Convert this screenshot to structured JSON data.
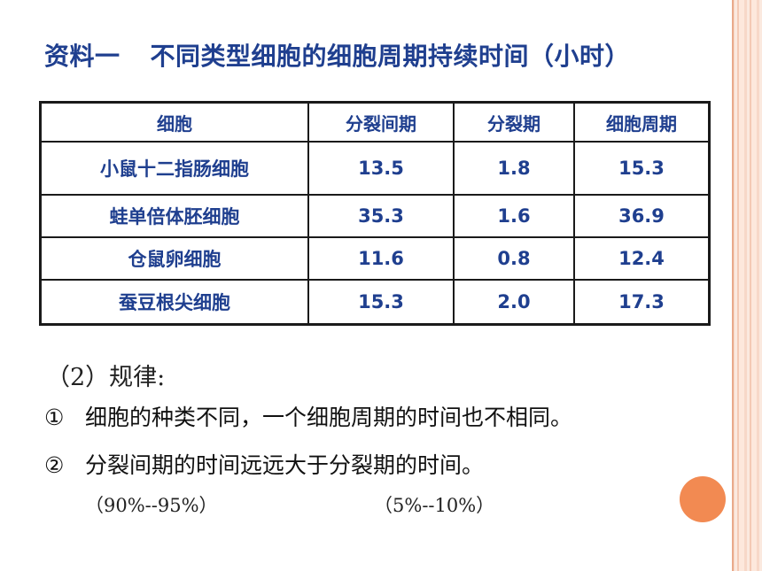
{
  "title": {
    "part1": "资料一",
    "part2": "不同类型细胞的细胞周期持续时间（小时）"
  },
  "table": {
    "headers": [
      "细胞",
      "分裂间期",
      "分裂期",
      "细胞周期"
    ],
    "rows": [
      [
        "小鼠十二指肠细胞",
        "13.5",
        "1.8",
        "15.3"
      ],
      [
        "蛙单倍体胚细胞",
        "35.3",
        "1.6",
        "36.9"
      ],
      [
        "仓鼠卵细胞",
        "11.6",
        "0.8",
        "12.4"
      ],
      [
        "蚕豆根尖细胞",
        "15.3",
        "2.0",
        "17.3"
      ]
    ]
  },
  "rules": {
    "heading": "（2）规律:",
    "items": [
      {
        "num": "①",
        "text": "细胞的种类不同，一个细胞周期的时间也不相同。"
      },
      {
        "num": "②",
        "text": "分裂间期的时间远远大于分裂期的时间。"
      }
    ],
    "pct_interphase": "（90%--95%）",
    "pct_mitosis": "（5%--10%）"
  },
  "colors": {
    "title": "#1f3f8f",
    "table_text": "#1f3f8f",
    "accent_dot": "#f28a52",
    "side_stripes": "#f7d8c8"
  }
}
